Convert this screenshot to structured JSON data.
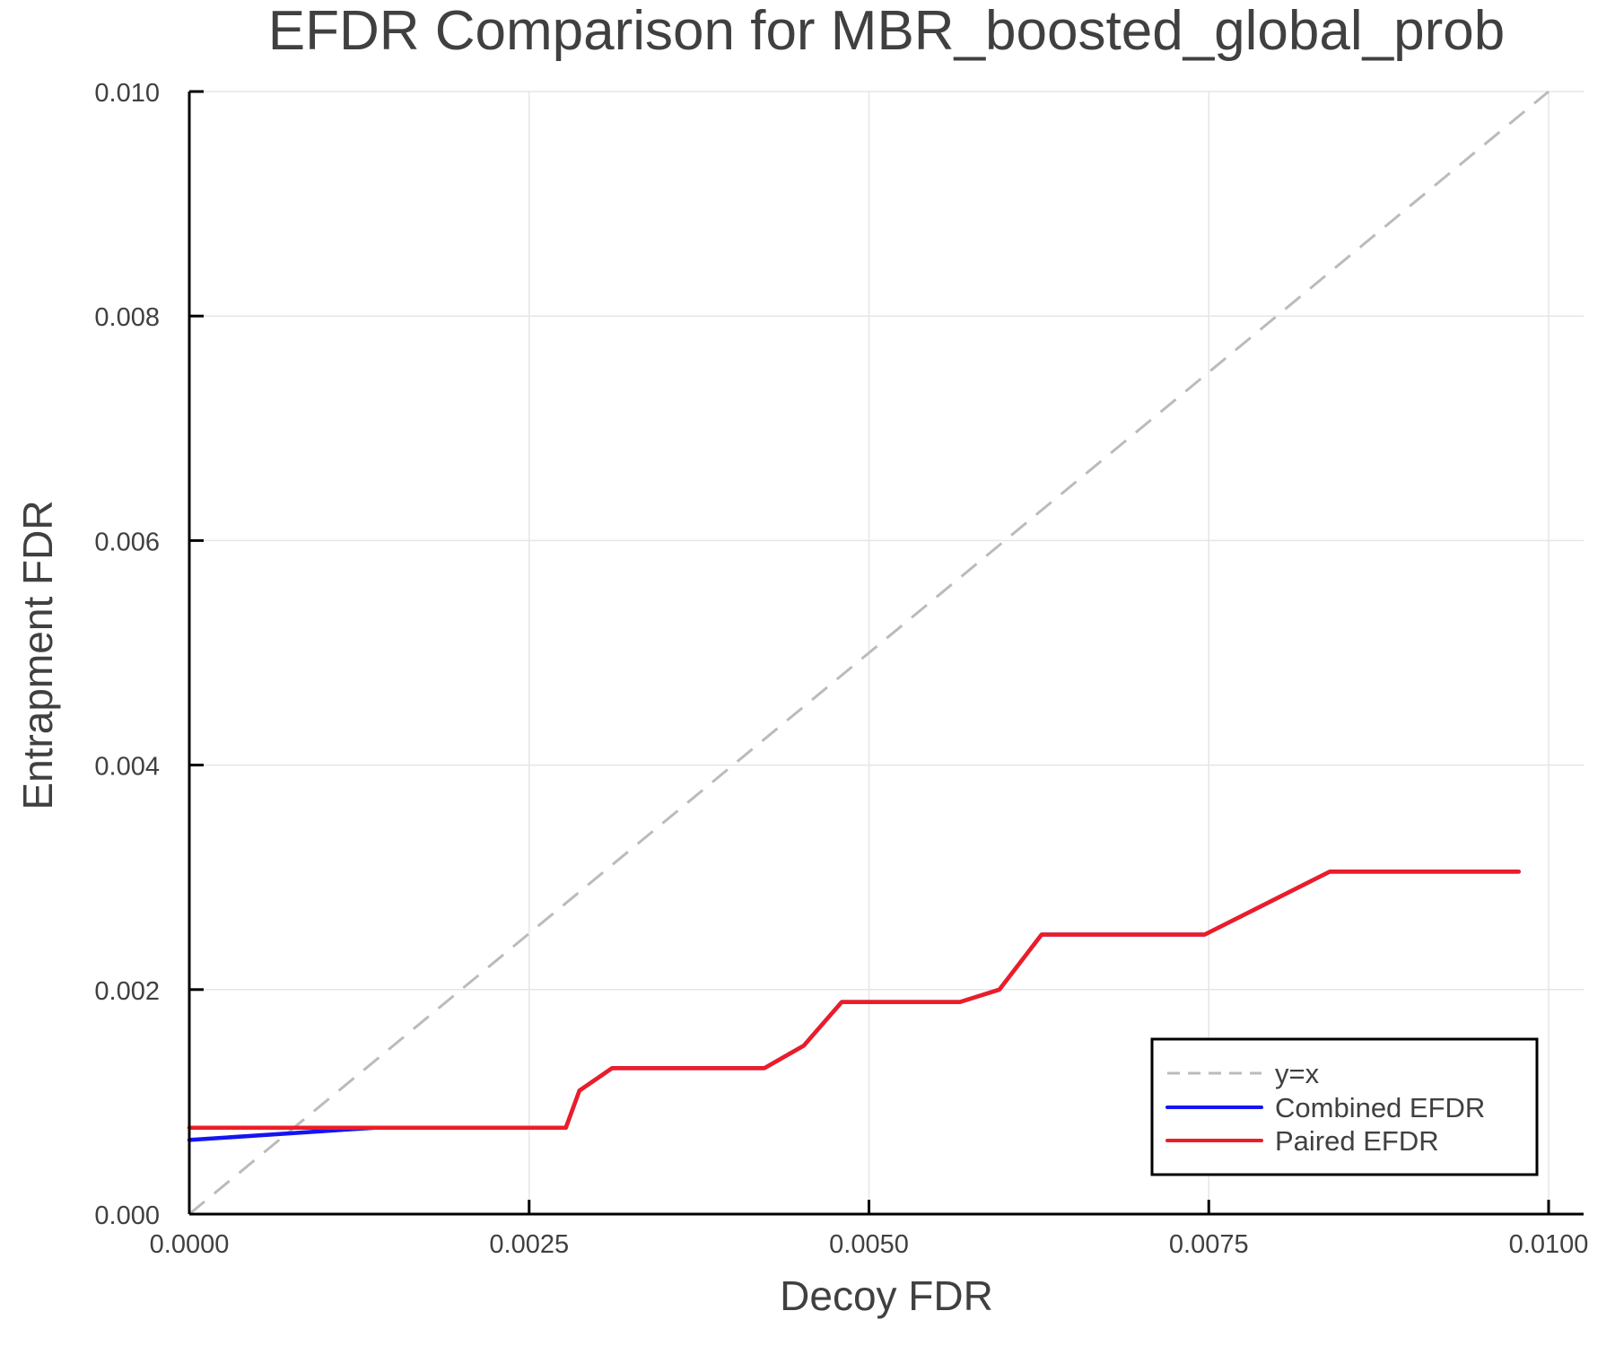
{
  "chart_data": {
    "type": "line",
    "title": "EFDR Comparison for MBR_boosted_global_prob",
    "xlabel": "Decoy FDR",
    "ylabel": "Entrapment FDR",
    "xlim": [
      0,
      0.01026
    ],
    "ylim": [
      0,
      0.01
    ],
    "xticks": [
      0.0,
      0.0025,
      0.005,
      0.0075,
      0.01
    ],
    "xtick_labels": [
      "0.0000",
      "0.0025",
      "0.0050",
      "0.0075",
      "0.0100"
    ],
    "yticks": [
      0.0,
      0.002,
      0.004,
      0.006,
      0.008,
      0.01
    ],
    "ytick_labels": [
      "0.000",
      "0.002",
      "0.004",
      "0.006",
      "0.008",
      "0.010"
    ],
    "grid": true,
    "legend_position": "bottom-right",
    "series": [
      {
        "name": "y=x",
        "color": "#bbbbbb",
        "style": "dashed",
        "x": [
          0,
          0.01
        ],
        "y": [
          0,
          0.01
        ]
      },
      {
        "name": "Combined EFDR",
        "color": "#1515f0",
        "style": "solid",
        "x": [
          0,
          0.00137,
          0.00277,
          0.00287,
          0.00311,
          0.00423,
          0.00452,
          0.0048,
          0.00567,
          0.00596,
          0.00627,
          0.00747,
          0.00839,
          0.00978
        ],
        "y": [
          0.00066,
          0.00077,
          0.00077,
          0.0011,
          0.0013,
          0.0013,
          0.0015,
          0.00189,
          0.00189,
          0.002,
          0.00249,
          0.00249,
          0.00305,
          0.00305
        ]
      },
      {
        "name": "Paired EFDR",
        "color": "#ee1c25",
        "style": "solid",
        "x": [
          0,
          0.00277,
          0.00287,
          0.00311,
          0.00423,
          0.00452,
          0.0048,
          0.00567,
          0.00596,
          0.00627,
          0.00747,
          0.00839,
          0.00978
        ],
        "y": [
          0.00077,
          0.00077,
          0.0011,
          0.0013,
          0.0013,
          0.0015,
          0.00189,
          0.00189,
          0.002,
          0.00249,
          0.00249,
          0.00305,
          0.00305
        ]
      }
    ]
  },
  "legend": {
    "items": [
      {
        "label": "y=x"
      },
      {
        "label": "Combined EFDR"
      },
      {
        "label": "Paired EFDR"
      }
    ]
  }
}
